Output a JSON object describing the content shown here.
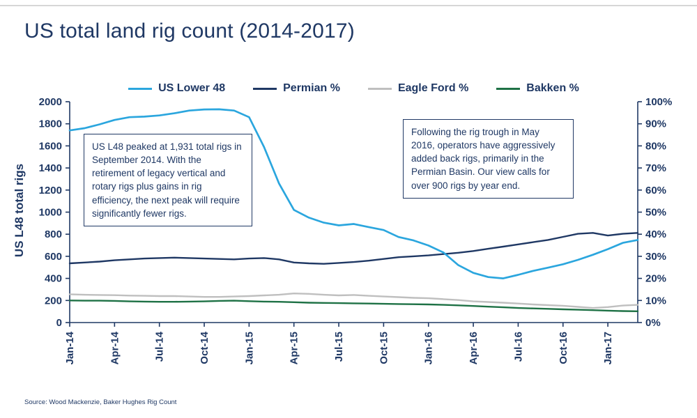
{
  "page": {
    "title": "US total land rig count (2014-2017)",
    "source": "Source: Wood Mackenzie, Baker Hughes Rig Count"
  },
  "colors": {
    "navy": "#1F3864",
    "light_blue": "#2BA6DE",
    "gray": "#BFBFBF",
    "green": "#1E7145",
    "axis_text": "#1F3864",
    "top_rule": "#D6D6D6"
  },
  "legend": {
    "items": [
      {
        "label": "US Lower 48",
        "color": "#2BA6DE"
      },
      {
        "label": "Permian %",
        "color": "#1F3864"
      },
      {
        "label": "Eagle Ford %",
        "color": "#BFBFBF"
      },
      {
        "label": "Bakken %",
        "color": "#1E7145"
      }
    ]
  },
  "annotations": {
    "left_box": "US L48 peaked at 1,931 total rigs in September 2014. With the retirement of legacy vertical and rotary rigs plus gains in rig efficiency, the next peak will require significantly fewer rigs.",
    "right_box": "Following the rig trough in May 2016, operators have aggressively added back rigs, primarily in the Permian Basin. Our view calls for over 900 rigs by year end."
  },
  "chart_data": {
    "type": "line",
    "title": "US total land rig count (2014-2017)",
    "ylabel_left": "US L48 total rigs",
    "ylabel_right": "",
    "left_axis": {
      "min": 0,
      "max": 2000,
      "step": 200
    },
    "right_axis": {
      "min": 0,
      "max": 100,
      "step": 10,
      "suffix": "%"
    },
    "x_tick_labels": [
      "Jan-14",
      "Apr-14",
      "Jul-14",
      "Oct-14",
      "Jan-15",
      "Apr-15",
      "Jul-15",
      "Oct-15",
      "Jan-16",
      "Apr-16",
      "Jul-16",
      "Oct-16",
      "Jan-17"
    ],
    "x_tick_every": 3,
    "grid": false,
    "legend_position": "top",
    "series": [
      {
        "name": "Eagle Ford %",
        "axis": "right",
        "color": "#BFBFBF",
        "width": 2.4,
        "values": [
          12.8,
          12.6,
          12.5,
          12.4,
          12.2,
          12.1,
          12.0,
          12.0,
          11.8,
          11.6,
          11.6,
          11.8,
          12.0,
          12.3,
          12.6,
          13.2,
          13.0,
          12.6,
          12.3,
          12.5,
          12.1,
          11.8,
          11.5,
          11.2,
          11.0,
          10.6,
          10.2,
          9.6,
          9.3,
          9.0,
          8.6,
          8.2,
          7.9,
          7.6,
          7.1,
          6.6,
          7.0,
          7.7,
          8.0
        ]
      },
      {
        "name": "Bakken %",
        "axis": "right",
        "color": "#1E7145",
        "width": 2.4,
        "values": [
          10.0,
          9.9,
          9.9,
          9.8,
          9.6,
          9.5,
          9.4,
          9.4,
          9.5,
          9.6,
          9.8,
          9.9,
          9.7,
          9.5,
          9.4,
          9.2,
          9.0,
          8.9,
          8.8,
          8.7,
          8.6,
          8.5,
          8.4,
          8.3,
          8.2,
          8.0,
          7.8,
          7.5,
          7.2,
          6.9,
          6.6,
          6.4,
          6.2,
          6.0,
          5.8,
          5.6,
          5.4,
          5.2,
          5.1
        ]
      },
      {
        "name": "Permian %",
        "axis": "right",
        "color": "#1F3864",
        "width": 2.4,
        "values": [
          26.8,
          27.2,
          27.6,
          28.2,
          28.6,
          29.0,
          29.2,
          29.4,
          29.2,
          29.0,
          28.8,
          28.6,
          29.0,
          29.2,
          28.6,
          27.2,
          26.8,
          26.6,
          27.0,
          27.4,
          28.0,
          28.8,
          29.6,
          30.0,
          30.4,
          31.0,
          31.6,
          32.4,
          33.4,
          34.4,
          35.4,
          36.4,
          37.4,
          38.8,
          40.2,
          40.6,
          39.4,
          40.2,
          40.6
        ]
      },
      {
        "name": "US Lower 48",
        "axis": "left",
        "color": "#2BA6DE",
        "width": 2.7,
        "values": [
          1740,
          1760,
          1795,
          1835,
          1860,
          1865,
          1876,
          1895,
          1920,
          1930,
          1931,
          1920,
          1860,
          1590,
          1260,
          1020,
          950,
          905,
          880,
          893,
          865,
          838,
          775,
          744,
          698,
          635,
          520,
          450,
          412,
          400,
          432,
          468,
          497,
          528,
          568,
          614,
          665,
          722,
          748
        ]
      }
    ]
  }
}
